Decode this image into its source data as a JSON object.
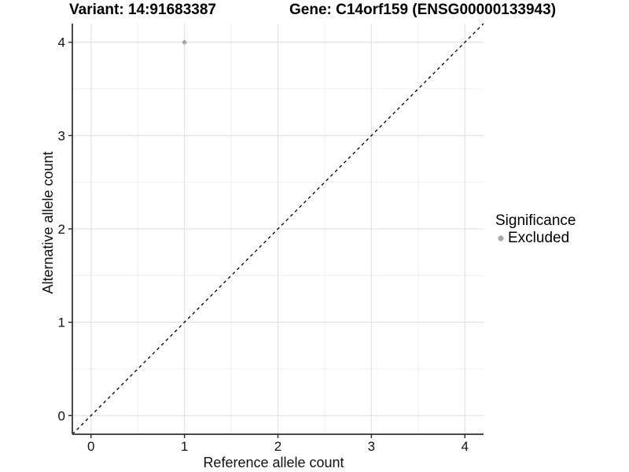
{
  "titles": {
    "variant": "Variant: 14:91683387",
    "gene": "Gene: C14orf159 (ENSG00000133943)"
  },
  "chart_data": {
    "type": "scatter",
    "title_left": "Variant: 14:91683387",
    "title_right": "Gene: C14orf159 (ENSG00000133943)",
    "xlabel": "Reference allele count",
    "ylabel": "Alternative allele count",
    "xlim": [
      -0.2,
      4.2
    ],
    "ylim": [
      -0.2,
      4.2
    ],
    "x_major_ticks": [
      0,
      1,
      2,
      3,
      4
    ],
    "y_major_ticks": [
      0,
      1,
      2,
      3,
      4
    ],
    "x_minor_ticks": [
      0.5,
      1.5,
      2.5,
      3.5
    ],
    "y_minor_ticks": [
      0.5,
      1.5,
      2.5,
      3.5
    ],
    "grid": true,
    "identity_line": {
      "style": "dashed",
      "from": [
        -0.2,
        -0.2
      ],
      "to": [
        4.2,
        4.2
      ],
      "color": "#000000"
    },
    "series": [
      {
        "name": "Excluded",
        "color": "#ababab",
        "points": [
          {
            "x": 1,
            "y": 4
          }
        ]
      }
    ],
    "legend": {
      "title": "Significance",
      "position": "right",
      "items": [
        {
          "label": "Excluded",
          "color": "#a9a9a9"
        }
      ]
    }
  },
  "theme": {
    "background": "#ffffff",
    "grid_major": "#e3e3e3",
    "grid_minor": "#efefef",
    "axis_line": "#4a4a4a",
    "tick": "#333333",
    "text": "#111111",
    "point_radius": 2.8,
    "legend_dot_radius": 3.6
  }
}
